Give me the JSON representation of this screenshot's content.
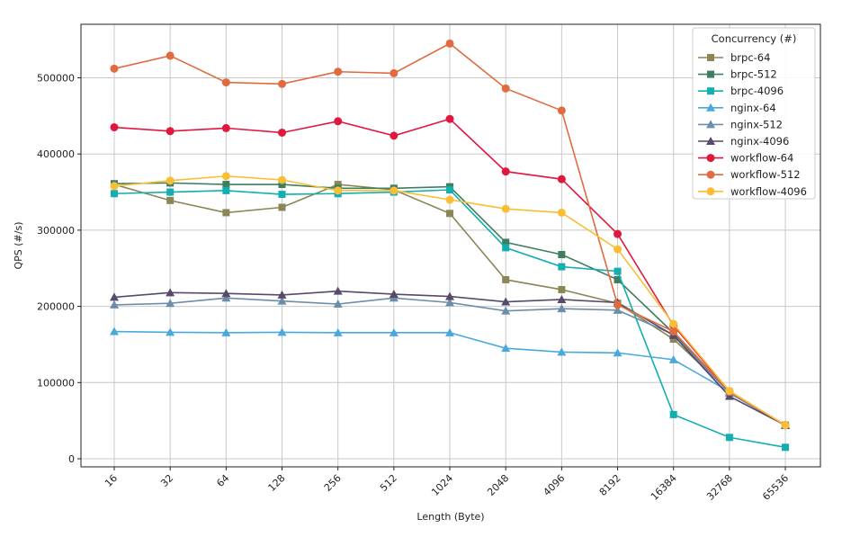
{
  "chart_data": {
    "type": "line",
    "title": "",
    "xlabel": "Length (Byte)",
    "ylabel": "QPS (#/s)",
    "categories": [
      "16",
      "32",
      "64",
      "128",
      "256",
      "512",
      "1024",
      "2048",
      "4096",
      "8192",
      "16384",
      "32768",
      "65536"
    ],
    "ylim": [
      -10000,
      570000
    ],
    "yticks": [
      0,
      100000,
      200000,
      300000,
      400000,
      500000
    ],
    "grid": true,
    "legend": {
      "title": "Concurrency (#)",
      "placement": "top-right"
    },
    "series": [
      {
        "name": "brpc-64",
        "color": "#8c8656",
        "marker": "square",
        "values": [
          360000,
          339000,
          323000,
          330000,
          360000,
          353000,
          322000,
          235000,
          222000,
          204000,
          157000,
          88000,
          44000
        ]
      },
      {
        "name": "brpc-512",
        "color": "#3d7f5f",
        "marker": "square",
        "values": [
          361000,
          362000,
          360000,
          360000,
          355000,
          355000,
          357000,
          284000,
          268000,
          235000,
          165000,
          87000,
          44000
        ]
      },
      {
        "name": "brpc-4096",
        "color": "#12aeb0",
        "marker": "square",
        "values": [
          348000,
          350000,
          352000,
          347000,
          348000,
          350000,
          353000,
          277000,
          252000,
          246000,
          58000,
          28000,
          15000
        ]
      },
      {
        "name": "nginx-64",
        "color": "#4aa9dc",
        "marker": "triangle",
        "values": [
          167000,
          166000,
          165500,
          166000,
          165500,
          165500,
          165500,
          145000,
          140000,
          139000,
          130000,
          88000,
          44000
        ]
      },
      {
        "name": "nginx-512",
        "color": "#6c8eaa",
        "marker": "triangle",
        "values": [
          202000,
          204000,
          211000,
          207000,
          203000,
          211000,
          205000,
          194000,
          197000,
          195000,
          163000,
          86000,
          44000
        ]
      },
      {
        "name": "nginx-4096",
        "color": "#574a6a",
        "marker": "triangle",
        "values": [
          212000,
          218000,
          217000,
          215000,
          220000,
          216000,
          213000,
          206000,
          209000,
          205000,
          162000,
          82000,
          44000
        ]
      },
      {
        "name": "workflow-64",
        "color": "#e0173f",
        "marker": "circle",
        "values": [
          435000,
          430000,
          434000,
          428000,
          443000,
          424000,
          446000,
          377000,
          367000,
          295000,
          175000,
          88000,
          44000
        ]
      },
      {
        "name": "workflow-512",
        "color": "#e06b3f",
        "marker": "circle",
        "values": [
          512000,
          529000,
          494000,
          492000,
          508000,
          506000,
          545000,
          486000,
          457000,
          202000,
          167000,
          88000,
          44000
        ]
      },
      {
        "name": "workflow-4096",
        "color": "#f9be35",
        "marker": "circle",
        "values": [
          358000,
          365000,
          371000,
          366000,
          352000,
          352000,
          340000,
          328000,
          323000,
          275000,
          177000,
          89000,
          44000
        ]
      }
    ]
  }
}
